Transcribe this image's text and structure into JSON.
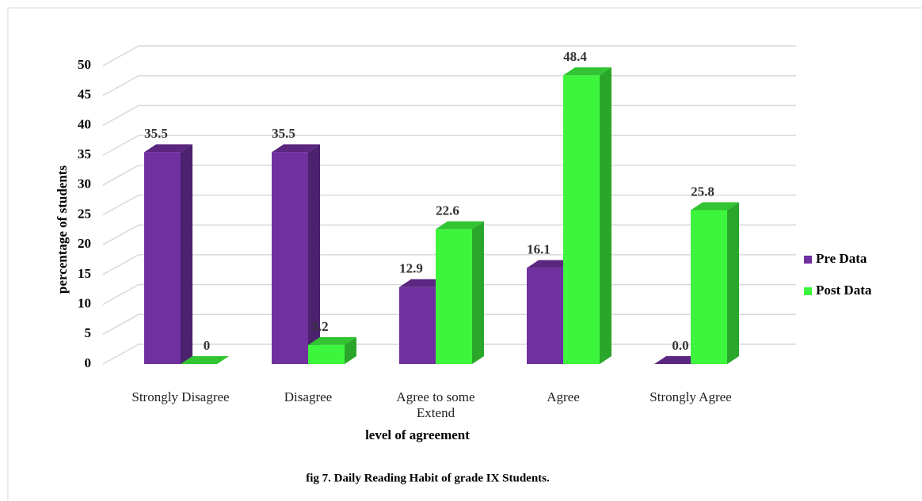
{
  "chart_data": {
    "type": "bar3d",
    "categories": [
      "Strongly Disagree",
      "Disagree",
      "Agree to some Extend",
      "Agree",
      "Strongly Agree"
    ],
    "series": [
      {
        "name": "Pre Data",
        "color": "#7030a0",
        "values": [
          35.5,
          35.5,
          12.9,
          16.1,
          0.0
        ],
        "value_labels": [
          "35.5",
          "35.5",
          "12.9",
          "16.1",
          "0.0"
        ]
      },
      {
        "name": "Post Data",
        "color": "#3ef53e",
        "values": [
          0,
          3.2,
          22.6,
          48.4,
          25.8
        ]
      }
    ],
    "ylim": [
      0,
      50
    ],
    "yticks": [
      0,
      5,
      10,
      15,
      20,
      25,
      30,
      35,
      40,
      45,
      50
    ],
    "grid": true,
    "ylabel": "percentage of students",
    "xlabel": "level of agreement",
    "legend": "right",
    "caption": "fig 7. Daily Reading Habit of grade IX  Students."
  }
}
